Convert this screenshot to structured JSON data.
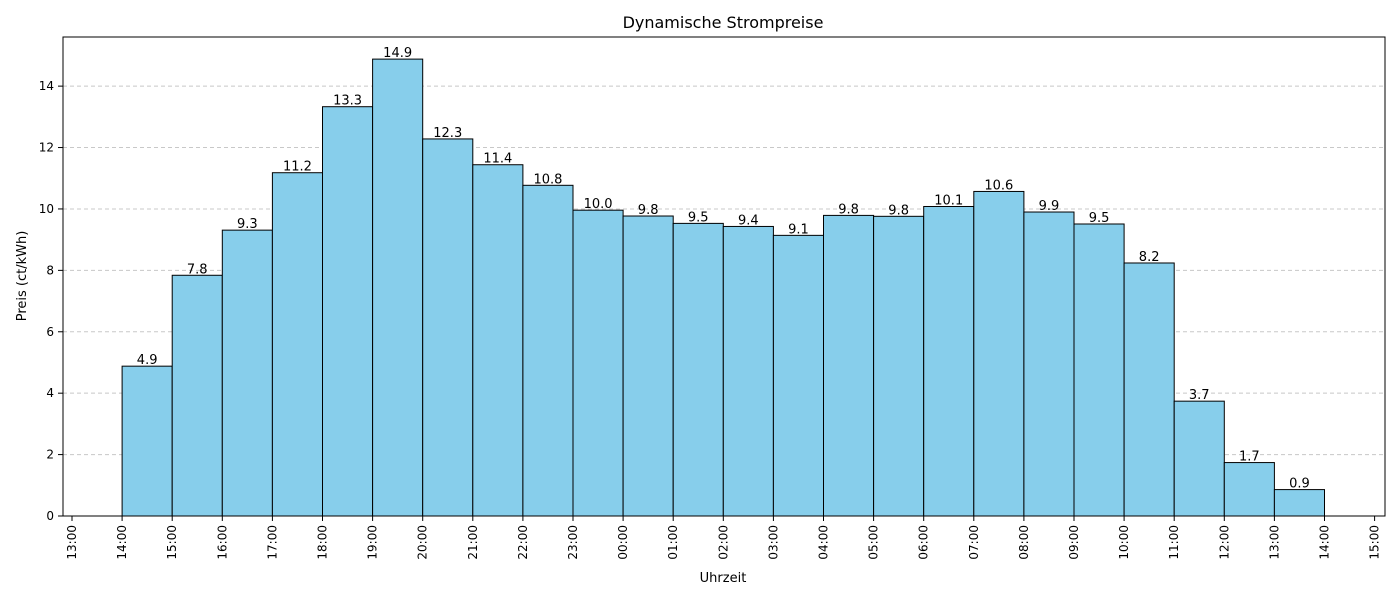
{
  "chart_data": {
    "type": "bar",
    "title": "Dynamische Strompreise",
    "xlabel": "Uhrzeit",
    "ylabel": "Preis (ct/kWh)",
    "categories": [
      "14:00",
      "15:00",
      "16:00",
      "17:00",
      "18:00",
      "19:00",
      "20:00",
      "21:00",
      "22:00",
      "23:00",
      "00:00",
      "01:00",
      "02:00",
      "03:00",
      "04:00",
      "05:00",
      "06:00",
      "07:00",
      "08:00",
      "09:00",
      "10:00",
      "11:00",
      "12:00",
      "13:00"
    ],
    "values": [
      4.88,
      7.84,
      9.31,
      11.18,
      13.33,
      14.88,
      12.28,
      11.44,
      10.77,
      9.96,
      9.77,
      9.53,
      9.43,
      9.14,
      9.79,
      9.76,
      10.08,
      10.57,
      9.9,
      9.51,
      8.24,
      3.74,
      1.74,
      0.86
    ],
    "value_labels": [
      "4.9",
      "7.8",
      "9.3",
      "11.2",
      "13.3",
      "14.9",
      "12.3",
      "11.4",
      "10.8",
      "10.0",
      "9.8",
      "9.5",
      "9.4",
      "9.1",
      "9.8",
      "9.8",
      "10.1",
      "10.6",
      "9.9",
      "9.5",
      "8.2",
      "3.7",
      "1.7",
      "0.9"
    ],
    "x_tick_labels": [
      "13:00",
      "14:00",
      "15:00",
      "16:00",
      "17:00",
      "18:00",
      "19:00",
      "20:00",
      "21:00",
      "22:00",
      "23:00",
      "00:00",
      "01:00",
      "02:00",
      "03:00",
      "04:00",
      "05:00",
      "06:00",
      "07:00",
      "08:00",
      "09:00",
      "10:00",
      "11:00",
      "12:00",
      "13:00",
      "14:00",
      "15:00"
    ],
    "y_ticks": [
      "0",
      "2",
      "4",
      "6",
      "8",
      "10",
      "12",
      "14"
    ],
    "ylim": [
      0,
      15.6
    ],
    "grid": "horizontal dashed",
    "colors": {
      "bar_fill": "#87ceeb",
      "bar_edge": "#000000",
      "grid": "#c8c8c8"
    }
  }
}
